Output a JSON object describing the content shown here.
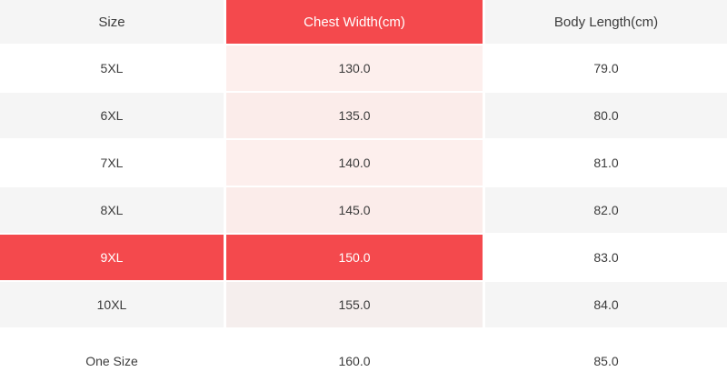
{
  "table": {
    "name": "garment-size-chart",
    "columns": [
      {
        "key": "size",
        "label": "Size",
        "highlight": false
      },
      {
        "key": "chest",
        "label": "Chest Width(cm)",
        "highlight": true
      },
      {
        "key": "body",
        "label": "Body Length(cm)",
        "highlight": false
      }
    ],
    "rows": [
      {
        "size": "5XL",
        "chest": "130.0",
        "body": "79.0",
        "selected": false
      },
      {
        "size": "6XL",
        "chest": "135.0",
        "body": "80.0",
        "selected": false
      },
      {
        "size": "7XL",
        "chest": "140.0",
        "body": "81.0",
        "selected": false
      },
      {
        "size": "8XL",
        "chest": "145.0",
        "body": "82.0",
        "selected": false
      },
      {
        "size": "9XL",
        "chest": "150.0",
        "body": "83.0",
        "selected": true
      },
      {
        "size": "10XL",
        "chest": "155.0",
        "body": "84.0",
        "selected": false
      },
      {
        "size": "One Size",
        "chest": "160.0",
        "body": "85.0",
        "selected": false
      }
    ],
    "selected_size": "9XL",
    "colors": {
      "accent_red": "#f4494d",
      "header_gray": "#f5f5f5",
      "row_white": "#ffffff",
      "row_alt_gray": "#f5f5f5",
      "chest_tint_on_white": "#fdefed",
      "chest_tint_on_gray": "#fbecea",
      "chest_tint_faded": "#f5eeed",
      "text_dark": "#3c3c3c",
      "text_on_red": "#ffffff"
    }
  },
  "chart_data": {
    "type": "table",
    "title": "",
    "columns": [
      "Size",
      "Chest Width(cm)",
      "Body Length(cm)"
    ],
    "rows": [
      [
        "5XL",
        130.0,
        79.0
      ],
      [
        "6XL",
        135.0,
        80.0
      ],
      [
        "7XL",
        140.0,
        81.0
      ],
      [
        "8XL",
        145.0,
        82.0
      ],
      [
        "9XL",
        150.0,
        83.0
      ],
      [
        "10XL",
        155.0,
        84.0
      ],
      [
        "One Size",
        160.0,
        85.0
      ]
    ],
    "highlighted_column": "Chest Width(cm)",
    "highlighted_row": "9XL"
  }
}
